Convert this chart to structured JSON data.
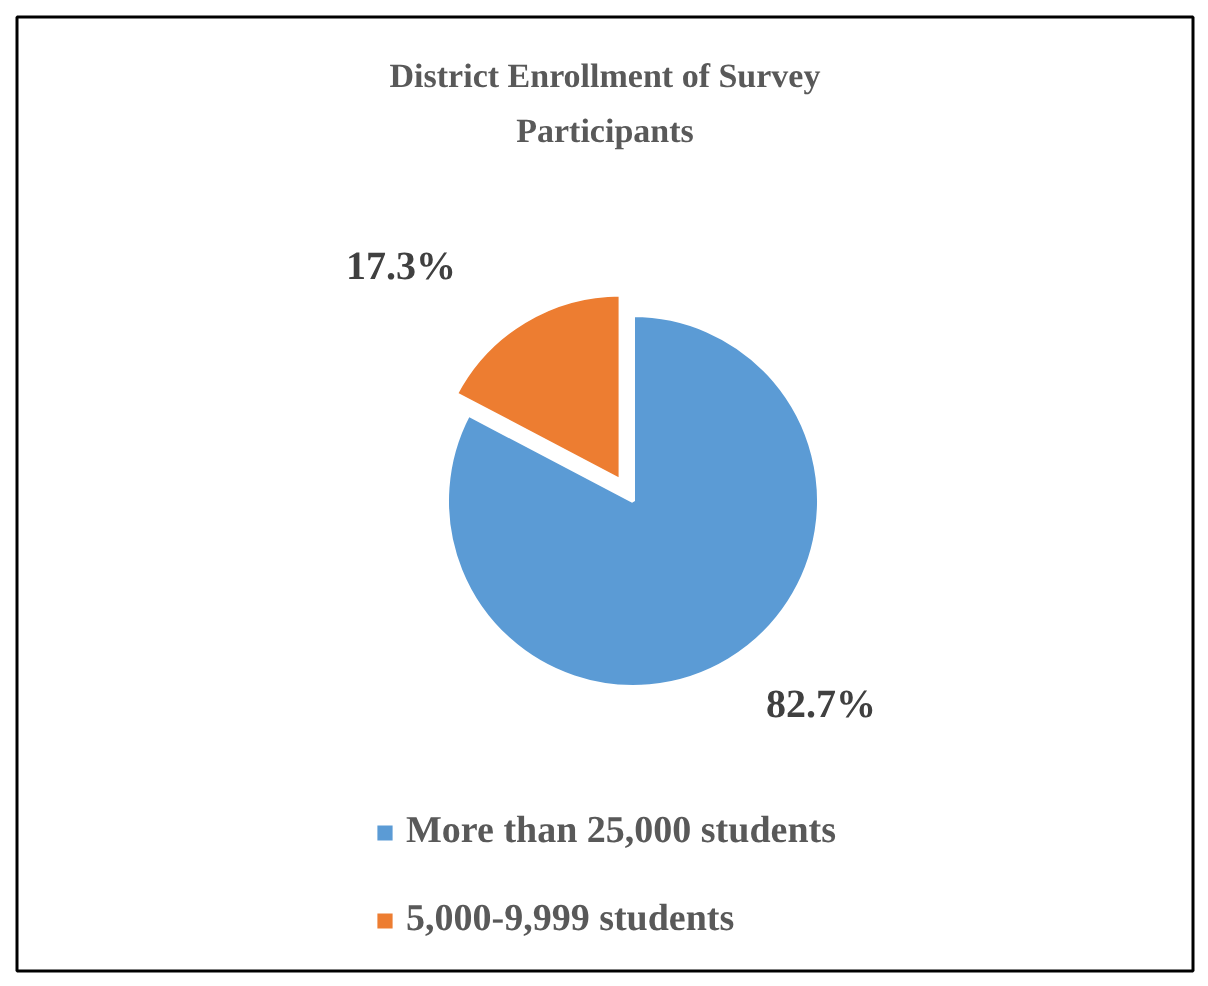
{
  "chart_data": {
    "type": "pie",
    "title": "District Enrollment of Survey Participants",
    "categories": [
      "More than 25,000 students",
      "5,000-9,999 students"
    ],
    "values": [
      82.7,
      17.3
    ],
    "colors": [
      "#5b9bd5",
      "#ed7d31"
    ],
    "value_labels": [
      "82.7%",
      "17.3%"
    ],
    "legend": "bottom"
  }
}
